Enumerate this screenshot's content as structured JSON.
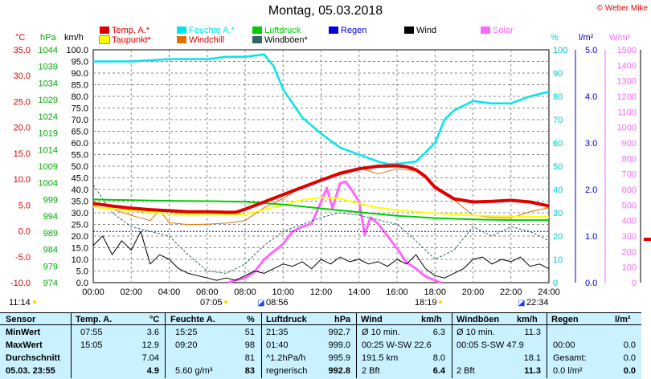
{
  "title": "Montag, 05.03.2018",
  "copyright": "© Weber Mike",
  "legend": [
    {
      "label": "Temp. A.*",
      "color": "#e00000"
    },
    {
      "label": "Feuchte A.*",
      "color": "#00e5ee"
    },
    {
      "label": "Luftdruck",
      "color": "#00cc00"
    },
    {
      "label": "Regen",
      "color": "#0000dd"
    },
    {
      "label": "Wind",
      "color": "#000000"
    },
    {
      "label": "Solar",
      "color": "#ff66ff"
    },
    {
      "label": "Taupunkt*",
      "color": "#ffff00"
    },
    {
      "label": "Windchill",
      "color": "#e07000"
    },
    {
      "label": "Windböen*",
      "color": "#336666"
    }
  ],
  "axis_units": {
    "temp": "°C",
    "press": "hPa",
    "wind": "km/h",
    "hum": "%",
    "rain": "l/m²",
    "solar": "W/m²"
  },
  "axes": {
    "temp_ticks": [
      "35.0",
      "30.0",
      "25.0",
      "20.0",
      "15.0",
      "10.0",
      "5.0",
      "0.0",
      "-5.0",
      "-10.0"
    ],
    "press_ticks": [
      "1044",
      "1039",
      "1034",
      "1029",
      "1024",
      "1019",
      "1014",
      "1009",
      "1004",
      "999",
      "994",
      "989",
      "984",
      "979",
      "974"
    ],
    "wind_ticks": [
      "100.0",
      "95.0",
      "90.0",
      "85.0",
      "80.0",
      "75.0",
      "70.0",
      "65.0",
      "60.0",
      "55.0",
      "50.0",
      "45.0",
      "40.0",
      "35.0",
      "30.0",
      "25.0",
      "20.0",
      "15.0",
      "10.0",
      "5.0",
      "0.0"
    ],
    "hum_ticks": [
      "100",
      "90",
      "80",
      "70",
      "60",
      "50",
      "40",
      "30",
      "20",
      "10",
      "0"
    ],
    "rain_ticks": [
      "5.0",
      "4.0",
      "3.0",
      "2.0",
      "1.0",
      "0.0"
    ],
    "solar_ticks": [
      "1500",
      "1400",
      "1300",
      "1200",
      "1100",
      "1000",
      "900",
      "800",
      "700",
      "600",
      "500",
      "400",
      "300",
      "200",
      "100",
      "0"
    ],
    "x_ticks": [
      "00:00",
      "02:00",
      "04:00",
      "06:00",
      "08:00",
      "10:00",
      "12:00",
      "14:00",
      "16:00",
      "18:00",
      "20:00",
      "22:00",
      "24:00"
    ]
  },
  "markers": {
    "moonrise_left": "11:14",
    "sunrise": "07:05",
    "moon1": "08:56",
    "sunset": "18:19",
    "moon2": "22:34"
  },
  "chart_data": {
    "type": "line",
    "title": "Montag, 05.03.2018",
    "x_unit": "hour",
    "xlim": [
      0,
      24
    ],
    "grid": true,
    "legend_position": "top",
    "series": [
      {
        "name": "Temp. A.*",
        "axis": "°C",
        "ylim": [
          -10,
          35
        ],
        "color": "#e00000",
        "x": [
          0,
          1,
          2,
          3,
          4,
          5,
          6,
          7,
          7.5,
          8,
          9,
          10,
          11,
          12,
          13,
          14,
          15,
          16,
          16.5,
          17,
          17.5,
          18,
          19,
          20,
          21,
          22,
          23,
          24
        ],
        "values": [
          5.3,
          4.8,
          4.4,
          4.1,
          3.9,
          3.7,
          3.7,
          3.6,
          3.6,
          4.2,
          5.6,
          7.0,
          8.4,
          9.8,
          11.1,
          12.0,
          12.5,
          12.6,
          12.4,
          11.8,
          10.5,
          8.4,
          6.2,
          5.6,
          5.7,
          5.9,
          5.6,
          4.8
        ]
      },
      {
        "name": "Feuchte A.*",
        "axis": "%",
        "ylim": [
          0,
          100
        ],
        "color": "#00e5ee",
        "x": [
          0,
          2,
          4,
          6,
          7,
          8,
          9,
          9.5,
          10,
          11,
          12,
          13,
          14,
          15,
          15.5,
          16,
          17,
          18,
          18.5,
          19,
          20,
          21,
          22,
          23,
          24
        ],
        "values": [
          95,
          95,
          96,
          96,
          97,
          97,
          98,
          93,
          83,
          71,
          64,
          58,
          55,
          52,
          51,
          51,
          52,
          60,
          70,
          74,
          78,
          77,
          77,
          80,
          82
        ]
      },
      {
        "name": "Luftdruck",
        "axis": "hPa",
        "ylim": [
          974,
          1044
        ],
        "color": "#00cc00",
        "x": [
          0,
          2,
          4,
          6,
          8,
          10,
          12,
          14,
          16,
          18,
          20,
          22,
          24
        ],
        "values": [
          999.0,
          998.8,
          998.6,
          998.5,
          998.3,
          997.5,
          996.3,
          995.2,
          994.1,
          993.4,
          993.0,
          992.8,
          992.8
        ]
      },
      {
        "name": "Taupunkt*",
        "axis": "°C",
        "ylim": [
          -10,
          35
        ],
        "color": "#ffff00",
        "x": [
          0,
          2,
          4,
          6,
          8,
          10,
          11,
          12,
          13,
          14,
          15,
          16,
          18,
          20,
          22,
          24
        ],
        "values": [
          4.6,
          3.9,
          3.3,
          3.1,
          3.2,
          5.0,
          6.0,
          6.5,
          6.2,
          5.3,
          4.5,
          4.0,
          3.4,
          3.0,
          2.8,
          2.7
        ]
      },
      {
        "name": "Windchill",
        "axis": "°C",
        "ylim": [
          -10,
          35
        ],
        "color": "#e07000",
        "x": [
          0,
          1,
          2,
          3,
          3.5,
          4,
          5,
          6,
          7,
          8,
          9,
          10,
          11,
          12,
          13,
          14,
          15,
          16,
          17,
          18,
          19,
          20,
          21,
          22,
          23,
          24
        ],
        "values": [
          4.8,
          4.2,
          3.0,
          2.0,
          4.0,
          1.6,
          1.2,
          1.3,
          1.5,
          2.0,
          4.5,
          6.3,
          8.5,
          10.0,
          11.4,
          12.2,
          11.0,
          12.0,
          11.6,
          8.8,
          6.0,
          3.0,
          2.6,
          2.5,
          3.7,
          4.5
        ]
      },
      {
        "name": "Windböen*",
        "axis": "km/h",
        "ylim": [
          0,
          100
        ],
        "color": "#336666",
        "x": [
          0,
          1,
          2,
          3,
          4,
          5,
          6,
          7,
          8,
          9,
          10,
          11,
          12,
          13,
          14,
          15,
          16,
          17,
          18,
          19,
          20,
          21,
          22,
          23,
          24
        ],
        "values": [
          42,
          30,
          24,
          22,
          20,
          12,
          5,
          4,
          8,
          16,
          22,
          25,
          28,
          30,
          29,
          27,
          25,
          18,
          10,
          14,
          24,
          20,
          24,
          22,
          18
        ]
      },
      {
        "name": "Wind",
        "axis": "km/h",
        "ylim": [
          0,
          100
        ],
        "color": "#000000",
        "x": [
          0,
          0.5,
          1,
          1.5,
          2,
          2.5,
          3,
          3.5,
          4,
          4.5,
          5,
          5.5,
          6,
          6.5,
          7,
          7.5,
          8,
          8.5,
          9,
          9.5,
          10,
          10.5,
          11,
          11.5,
          12,
          12.5,
          13,
          13.5,
          14,
          14.5,
          15,
          15.5,
          16,
          16.5,
          17,
          17.5,
          18,
          18.5,
          19,
          19.5,
          20,
          20.5,
          21,
          21.5,
          22,
          22.5,
          23,
          23.5,
          24
        ],
        "values": [
          16,
          20,
          12,
          18,
          14,
          22,
          8,
          12,
          10,
          6,
          4,
          3,
          2,
          1,
          2,
          1,
          3,
          5,
          4,
          6,
          8,
          7,
          9,
          6,
          10,
          8,
          11,
          9,
          10,
          8,
          9,
          7,
          10,
          8,
          12,
          6,
          3,
          2,
          4,
          6,
          10,
          11,
          8,
          10,
          9,
          11,
          7,
          8,
          6
        ]
      },
      {
        "name": "Regen",
        "axis": "l/m²",
        "ylim": [
          0,
          5
        ],
        "color": "#0000dd",
        "x": [
          0,
          24
        ],
        "values": [
          1.1,
          1.1
        ]
      },
      {
        "name": "Solar",
        "axis": "W/m²",
        "ylim": [
          0,
          1500
        ],
        "color": "#ff66ff",
        "x": [
          7.1,
          7.5,
          8,
          8.5,
          9,
          9.5,
          10,
          10.5,
          11,
          11.5,
          12,
          12.3,
          12.6,
          13,
          13.3,
          13.6,
          14,
          14.3,
          14.6,
          15,
          15.5,
          16,
          16.5,
          17,
          17.5,
          18,
          18.3
        ],
        "values": [
          0,
          15,
          30,
          70,
          150,
          200,
          250,
          330,
          360,
          380,
          520,
          610,
          480,
          640,
          650,
          600,
          520,
          310,
          420,
          380,
          300,
          220,
          130,
          90,
          40,
          15,
          0
        ]
      }
    ]
  },
  "table": {
    "headers": [
      "Sensor",
      "Temp. A.",
      "°C",
      "Feuchte A.",
      "%",
      "Luftdruck",
      "hPa",
      "Wind",
      "km/h",
      "Windböen",
      "km/h",
      "Regen",
      "l/m²"
    ],
    "rows": [
      {
        "label": "MinWert",
        "temp_time": "07:55",
        "temp_val": "3.6",
        "hum_time": "15:25",
        "hum_val": "51",
        "press_time": "21:35",
        "press_val": "992.7",
        "wind_desc": "Ø 10 min.",
        "wind_val": "6.3",
        "gust_desc": "Ø 10 min.",
        "gust_val": "11.3",
        "rain_desc": "",
        "rain_val": ""
      },
      {
        "label": "MaxWert",
        "temp_time": "15:05",
        "temp_val": "12.9",
        "hum_time": "09:20",
        "hum_val": "98",
        "press_time": "01:40",
        "press_val": "999.0",
        "wind_desc": "00:25    W-SW 22.6",
        "wind_val": "",
        "gust_desc": "00:05     S-SW 47.9",
        "gust_val": "",
        "rain_desc": "00:00",
        "rain_val": "0.0"
      },
      {
        "label": "Durchschnitt",
        "temp_time": "",
        "temp_val": "7.04",
        "hum_time": "",
        "hum_val": "81",
        "press_time": "^1.2hPa/h",
        "press_val": "995.9",
        "wind_desc": "191.5 km",
        "wind_val": "8.0",
        "gust_desc": "",
        "gust_val": "18.1",
        "rain_desc": "Gesamt:",
        "rain_val": "0.0"
      },
      {
        "label": "05.03. 23:55",
        "temp_time": "",
        "temp_val": "4.9",
        "hum_time": "5.60 g/m³",
        "hum_val": "83",
        "press_time": "regnerisch",
        "press_val": "992.8",
        "wind_desc": "2 Bft",
        "wind_val": "6.4",
        "gust_desc": "2 Bft",
        "gust_val": "11.3",
        "rain_desc": "0.0 l/m²",
        "rain_val": "0.0"
      }
    ]
  }
}
